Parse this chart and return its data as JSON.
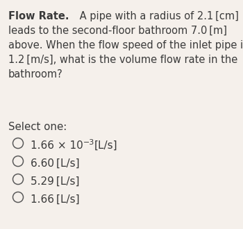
{
  "background_color": "#f5f0eb",
  "text_color": "#3a3a3a",
  "circle_color": "#5a5a5a",
  "font_size_body": 10.5,
  "font_size_options": 11.0,
  "font_size_select": 10.8,
  "lines": [
    {
      "bold": "Flow Rate.",
      "normal": " A pipe with a radius of 2.1 [cm]"
    },
    {
      "bold": "",
      "normal": "leads to the second-floor bathroom 7.0 [m]"
    },
    {
      "bold": "",
      "normal": "above. When the flow speed of the inlet pipe is"
    },
    {
      "bold": "",
      "normal": "1.2 [m/s], what is the volume flow rate in the"
    },
    {
      "bold": "",
      "normal": "bathroom?"
    }
  ],
  "select_label": "Select one:",
  "option_main": [
    "1.66 × 10",
    "6.60 [L/s]",
    "5.29 [L/s]",
    "1.66 [L/s]"
  ],
  "option1_sup": "−3",
  "option1_after": "[L/s]"
}
